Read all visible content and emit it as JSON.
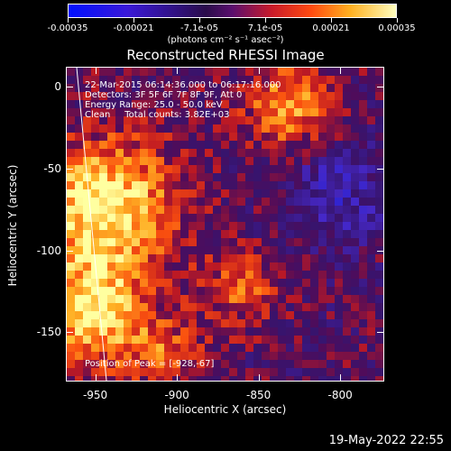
{
  "colors": {
    "low": "#0010ff",
    "mid": "#3b0f6e",
    "high": "#ffff40",
    "limb": "#ffffff"
  },
  "colorbar": {
    "tick_labels": [
      "-0.00035",
      "-0.00021",
      "-7.1e-05",
      "7.1e-05",
      "0.00021",
      "0.00035"
    ],
    "units": "(photons cm⁻² s⁻¹ asec⁻²)"
  },
  "chart_data": {
    "type": "heatmap",
    "title": "Reconstructed RHESSI Image",
    "xlabel": "Heliocentric X (arcsec)",
    "ylabel": "Heliocentric Y (arcsec)",
    "xlim": [
      -968,
      -773
    ],
    "ylim": [
      -180,
      12
    ],
    "xticks": [
      "-950",
      "-900",
      "-850",
      "-800"
    ],
    "yticks": [
      "0",
      "-50",
      "-100",
      "-150"
    ],
    "clim": [
      -0.00035,
      0.00035
    ],
    "peak": {
      "x": -928,
      "y": -67
    },
    "annotations": {
      "time_range": "22-Mar-2015 06:14:36.000 to 06:17:16.000",
      "detectors": "Detectors: 3F 5F 6F 7F 8F 9F, Att 0",
      "energy_range": "Energy Range: 25.0 - 50.0 keV",
      "algorithm": "Clean     Total counts: 3.82E+03",
      "peak_text": "Position of Peak = [-928,-67]"
    }
  },
  "footer": {
    "timestamp": "19-May-2022 22:55"
  }
}
